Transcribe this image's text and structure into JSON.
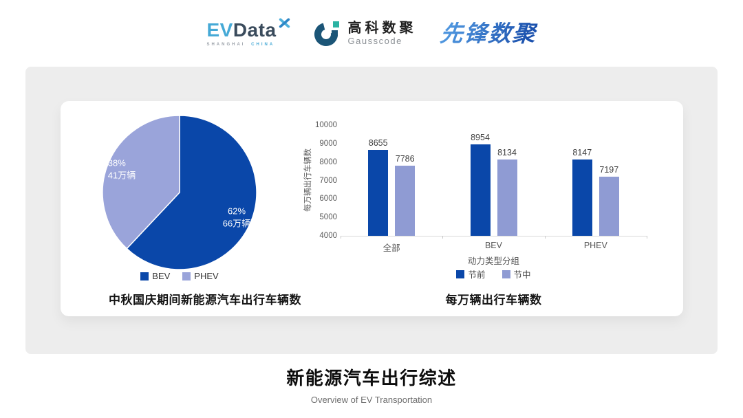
{
  "header": {
    "evdata": {
      "wordmark_ev": "EV",
      "wordmark_data": "Data",
      "subtext_left": "SHANGHAI",
      "subtext_right": "CHINA"
    },
    "gausscode": {
      "name_cn": "高科数聚",
      "name_en": "Gausscode"
    },
    "pioneer": {
      "name_cn": "先锋数聚"
    }
  },
  "colors": {
    "series_dark_blue": "#0A47A9",
    "series_light_blue": "#8F9BD3",
    "pie_light_blue": "#9AA4DA",
    "panel_gray": "#EDEDED"
  },
  "chart_data": [
    {
      "type": "pie",
      "title": "中秋国庆期间新能源汽车出行车辆数",
      "legend_position": "bottom",
      "start_angle": "top",
      "direction": "clockwise",
      "slices": [
        {
          "label": "BEV",
          "pct": 62,
          "pct_label": "62%",
          "value_label": "66万辆",
          "color": "#0A47A9"
        },
        {
          "label": "PHEV",
          "pct": 38,
          "pct_label": "38%",
          "value_label": "41万辆",
          "color": "#9AA4DA"
        }
      ]
    },
    {
      "type": "bar",
      "title": "每万辆出行车辆数",
      "xlabel": "动力类型分组",
      "ylabel": "每万辆出行车辆数",
      "categories": [
        "全部",
        "BEV",
        "PHEV"
      ],
      "series": [
        {
          "name": "节前",
          "color": "#0A47A9",
          "values": [
            8655,
            8954,
            8147
          ]
        },
        {
          "name": "节中",
          "color": "#8F9BD3",
          "values": [
            7786,
            8134,
            7197
          ]
        }
      ],
      "ylim": [
        4000,
        10000
      ],
      "ytick_step": 1000,
      "grid": false,
      "legend_position": "bottom"
    }
  ],
  "footer": {
    "title": "新能源汽车出行综述",
    "subtitle": "Overview of EV Transportation"
  }
}
